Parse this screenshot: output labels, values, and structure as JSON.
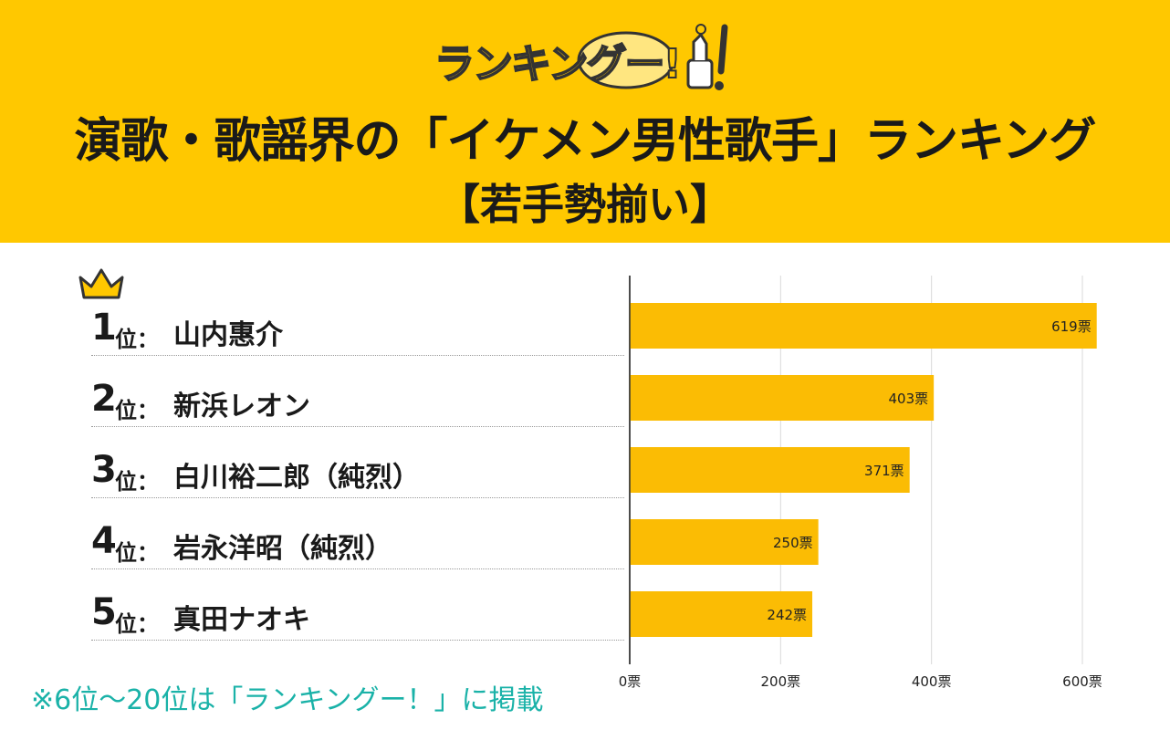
{
  "brand": {
    "logo_text": "ランキングー!"
  },
  "header": {
    "title": "演歌・歌謡界の「イケメン男性歌手」ランキング",
    "subtitle": "【若手勢揃い】"
  },
  "ranks": [
    {
      "num": "1",
      "pos": "位：",
      "name": "山内惠介"
    },
    {
      "num": "2",
      "pos": "位：",
      "name": "新浜レオン"
    },
    {
      "num": "3",
      "pos": "位：",
      "name": "白川裕二郎（純烈）"
    },
    {
      "num": "4",
      "pos": "位：",
      "name": "岩永洋昭（純烈）"
    },
    {
      "num": "5",
      "pos": "位：",
      "name": "真田ナオキ"
    }
  ],
  "note": "※6位〜20位は「ランキングー！」に掲載",
  "colors": {
    "header": "#FFC800",
    "bar": "#FBBC04",
    "note": "#1ab2a8"
  },
  "chart_data": {
    "type": "bar",
    "orientation": "horizontal",
    "categories": [
      "山内惠介",
      "新浜レオン",
      "白川裕二郎（純烈）",
      "岩永洋昭（純烈）",
      "真田ナオキ"
    ],
    "values": [
      619,
      403,
      371,
      250,
      242
    ],
    "value_labels": [
      "619票",
      "403票",
      "371票",
      "250票",
      "242票"
    ],
    "xlim": [
      0,
      600
    ],
    "ticks": [
      0,
      200,
      400,
      600
    ],
    "tick_labels": [
      "0票",
      "200票",
      "400票",
      "600票"
    ],
    "unit": "票",
    "grid": true
  }
}
